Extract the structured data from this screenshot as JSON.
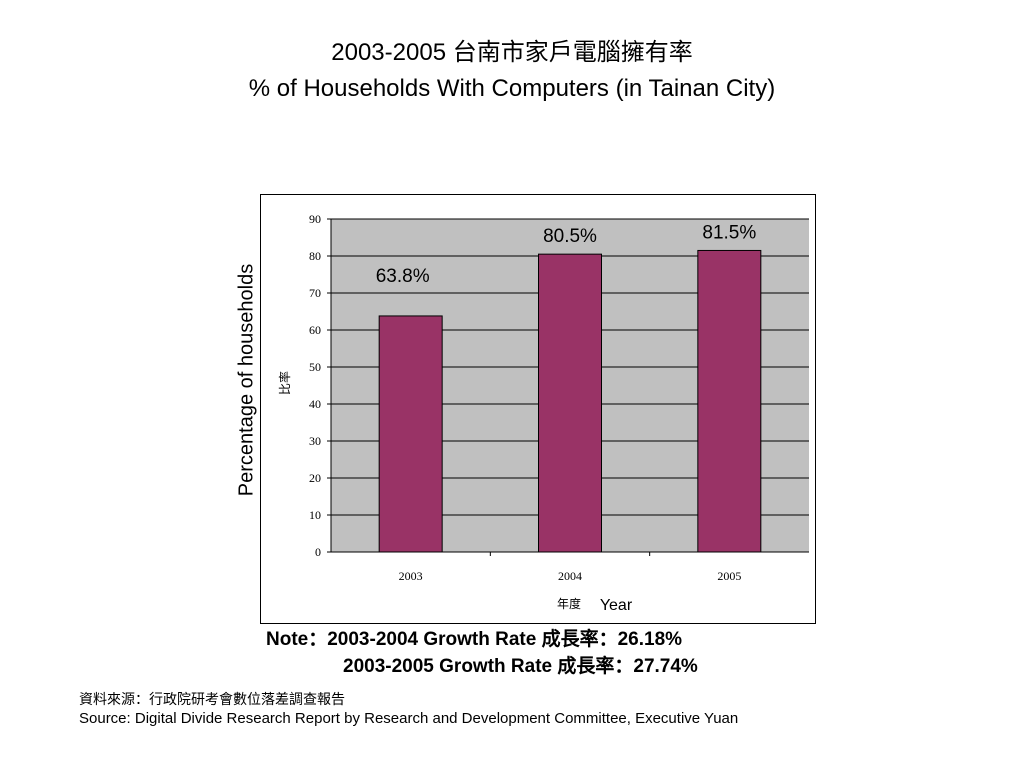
{
  "title_line1": "2003-2005  台南市家戶電腦擁有率",
  "title_line2": "% of Households With Computers (in Tainan City)",
  "chart_data": {
    "type": "bar",
    "categories": [
      "2003",
      "2004",
      "2005"
    ],
    "values": [
      63.8,
      80.5,
      81.5
    ],
    "data_labels": [
      "63.8%",
      "80.5%",
      "81.5%"
    ],
    "ylim": [
      0,
      90
    ],
    "yticks": [
      "0",
      "10",
      "20",
      "30",
      "40",
      "50",
      "60",
      "70",
      "80",
      "90"
    ],
    "ylabel_en": "Percentage of households",
    "ylabel_zh": "比率",
    "xlabel_zh": "年度",
    "xlabel_en": "Year",
    "grid": true,
    "colors": {
      "bar": "#993366",
      "plot_bg": "#c0c0c0"
    }
  },
  "note": {
    "line1": "Note：2003-2004 Growth Rate  成長率：26.18%",
    "line2": "2003-2005 Growth Rate 成長率：27.74%"
  },
  "source": {
    "zh": "資料來源：行政院研考會數位落差調查報告",
    "en": "Source: Digital Divide Research Report by Research and Development Committee, Executive Yuan"
  }
}
